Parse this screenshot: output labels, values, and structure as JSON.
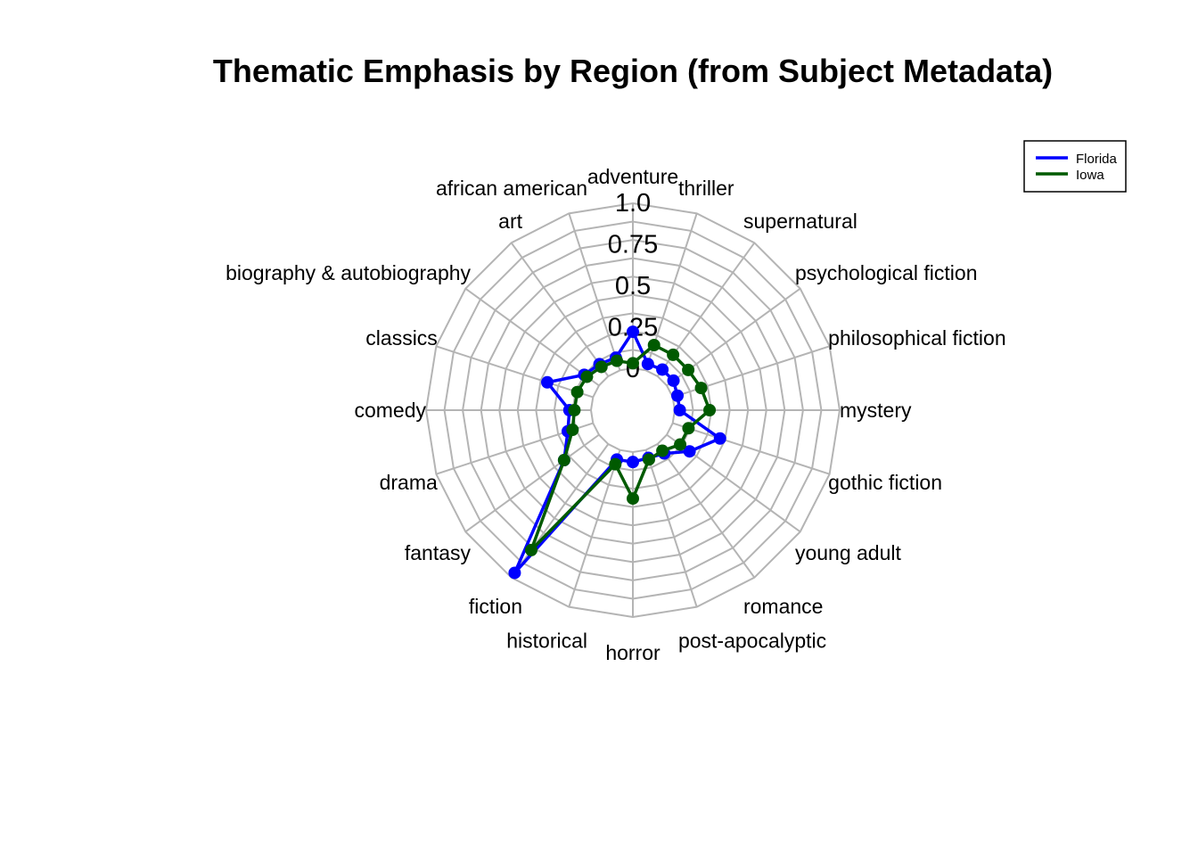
{
  "chart_data": {
    "type": "radar",
    "title": "Thematic Emphasis by Region (from Subject Metadata)",
    "categories": [
      "adventure",
      "thriller",
      "supernatural",
      "psychological fiction",
      "philosophical fiction",
      "mystery",
      "gothic fiction",
      "young adult",
      "romance",
      "post-apocalyptic",
      "horror",
      "historical",
      "fiction",
      "fantasy",
      "drama",
      "comedy",
      "classics",
      "biography & autobiography",
      "art",
      "african american"
    ],
    "radial_ticks": [
      "0",
      "0.25",
      "0.5",
      "0.75",
      "1.0"
    ],
    "radial_range": [
      0,
      1
    ],
    "grid": true,
    "legend_position": "top-right",
    "series": [
      {
        "name": "Florida",
        "color": "#0000ff",
        "values": [
          0.22,
          0.04,
          0.05,
          0.05,
          0.03,
          0.03,
          0.3,
          0.17,
          0.07,
          0.05,
          0.06,
          0.06,
          0.96,
          0.26,
          0.16,
          0.13,
          0.29,
          0.11,
          0.09,
          0.08
        ]
      },
      {
        "name": "Iowa",
        "color": "#005a00",
        "values": [
          0.03,
          0.16,
          0.16,
          0.16,
          0.18,
          0.21,
          0.1,
          0.1,
          0.05,
          0.06,
          0.28,
          0.09,
          0.79,
          0.26,
          0.13,
          0.1,
          0.1,
          0.09,
          0.07,
          0.06
        ]
      }
    ]
  }
}
